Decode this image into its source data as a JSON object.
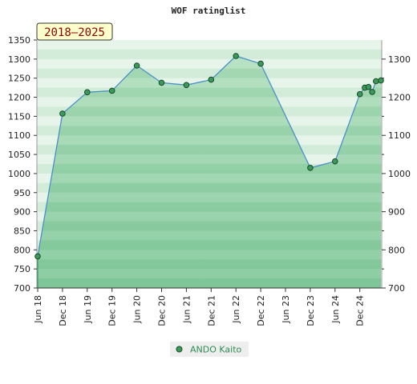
{
  "chart_data": {
    "type": "area",
    "title": "WOF ratinglist",
    "badge": "2018–2025",
    "ylim": [
      700,
      1350
    ],
    "yticks_left": [
      700,
      750,
      800,
      850,
      900,
      950,
      1000,
      1050,
      1100,
      1150,
      1200,
      1250,
      1300,
      1350
    ],
    "yticks_right": [
      700,
      800,
      900,
      1000,
      1100,
      1200,
      1300
    ],
    "x_categories": [
      "Jun 18",
      "Dec 18",
      "Jun 19",
      "Dec 19",
      "Jun 20",
      "Dec 20",
      "Jun 21",
      "Dec 21",
      "Jun 22",
      "Dec 22",
      "Jun 23",
      "Dec 23",
      "Jun 24",
      "Dec 24"
    ],
    "series": [
      {
        "name": "ANDO Kaito",
        "points": [
          {
            "x": 0,
            "y": 783
          },
          {
            "x": 1,
            "y": 1157
          },
          {
            "x": 2,
            "y": 1213
          },
          {
            "x": 3,
            "y": 1217
          },
          {
            "x": 4,
            "y": 1283
          },
          {
            "x": 5,
            "y": 1238
          },
          {
            "x": 6,
            "y": 1232
          },
          {
            "x": 7,
            "y": 1246
          },
          {
            "x": 8,
            "y": 1308
          },
          {
            "x": 9,
            "y": 1288
          },
          {
            "x": 11,
            "y": 1015
          },
          {
            "x": 12,
            "y": 1032
          },
          {
            "x": 13,
            "y": 1208
          },
          {
            "x": 13.2,
            "y": 1225
          },
          {
            "x": 13.35,
            "y": 1227
          },
          {
            "x": 13.5,
            "y": 1214
          },
          {
            "x": 13.65,
            "y": 1242
          },
          {
            "x": 13.85,
            "y": 1244
          }
        ]
      }
    ],
    "grid": true,
    "legend": "bottom"
  },
  "colors": {
    "line": "#4a90c8",
    "fill": "#6dbf8b",
    "marker_fill": "#3a9a5a",
    "band_a": "#e6f4ea",
    "band_b": "#d2ecd9",
    "badge_bg": "#ffffcc"
  }
}
